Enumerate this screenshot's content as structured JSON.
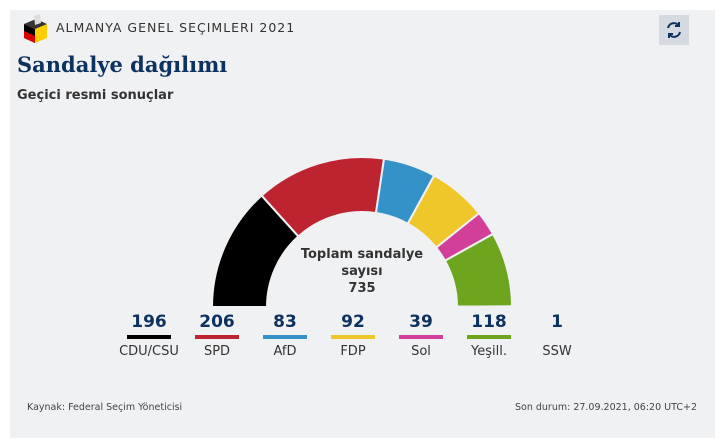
{
  "header": {
    "kicker": "ALMANYA GENEL SEÇIMLERI 2021",
    "title": "Sandalye dağılımı",
    "subtitle": "Geçici resmi sonuçlar"
  },
  "center": {
    "line1": "Toplam sandalye",
    "line2": "sayısı",
    "total": "735"
  },
  "chart_data": {
    "type": "pie",
    "subtype": "semicircle",
    "title": "Sandalye dağılımı",
    "total": 735,
    "categories": [
      "CDU/CSU",
      "SPD",
      "AfD",
      "FDP",
      "Sol",
      "Yeşill.",
      "SSW"
    ],
    "values": [
      196,
      206,
      83,
      92,
      39,
      118,
      1
    ],
    "colors": [
      "#000000",
      "#be2430",
      "#3592c8",
      "#f0c72a",
      "#d23f98",
      "#6ea51e",
      "#8a8a8a"
    ]
  },
  "legend": [
    {
      "value": "196",
      "label": "CDU/CSU"
    },
    {
      "value": "206",
      "label": "SPD"
    },
    {
      "value": "83",
      "label": "AfD"
    },
    {
      "value": "92",
      "label": "FDP"
    },
    {
      "value": "39",
      "label": "Sol"
    },
    {
      "value": "118",
      "label": "Yeşill."
    },
    {
      "value": "1",
      "label": "SSW"
    }
  ],
  "footer": {
    "source": "Kaynak: Federal Seçim Yöneticisi",
    "updated": "Son durum: 27.09.2021, 06:20 UTC+2"
  }
}
